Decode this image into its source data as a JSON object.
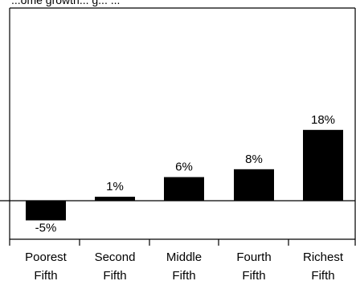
{
  "chart_data": {
    "type": "bar",
    "title": "...ome growth... g... ...",
    "categories": [
      [
        "Poorest",
        "Fifth"
      ],
      [
        "Second",
        "Fifth"
      ],
      [
        "Middle",
        "Fifth"
      ],
      [
        "Fourth",
        "Fifth"
      ],
      [
        "Richest",
        "Fifth"
      ]
    ],
    "values": [
      -5,
      1,
      6,
      8,
      18
    ],
    "value_labels": [
      "-5%",
      "1%",
      "6%",
      "8%",
      "18%"
    ],
    "ylim": [
      -8,
      24
    ],
    "bar_color": "#000000",
    "grid": false,
    "xlabel": "",
    "ylabel": ""
  }
}
